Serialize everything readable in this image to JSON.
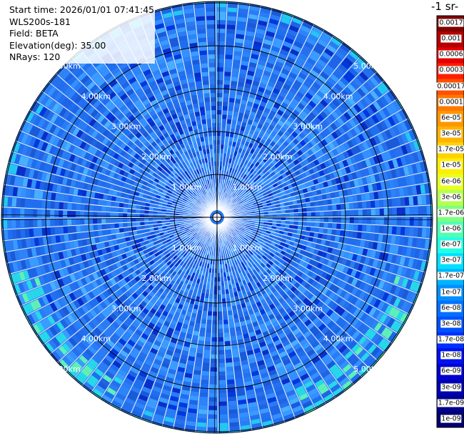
{
  "info": {
    "start_time": "Start time: 2026/01/01 07:41:45",
    "instrument": "WLS200s-181",
    "field": "Field: BETA",
    "elevation": "Elevation(deg): 35.00",
    "nrays": "NRays: 120"
  },
  "colorbar": {
    "title": "-1 sr-",
    "labels": [
      "0.0017",
      "0.001",
      "0.0006",
      "0.0003",
      "0.00017",
      "0.0001",
      "6e-05",
      "3e-05",
      "1.7e-05",
      "1e-05",
      "6e-06",
      "3e-06",
      "1.7e-06",
      "1e-06",
      "6e-07",
      "3e-07",
      "1.7e-07",
      "1e-07",
      "6e-08",
      "3e-08",
      "1.7e-08",
      "1e-08",
      "6e-09",
      "3e-09",
      "1.7e-09",
      "1e-09"
    ],
    "colors": [
      "#800000",
      "#b40000",
      "#e60000",
      "#ff1e00",
      "#ff5000",
      "#ff7800",
      "#ff9600",
      "#ffb400",
      "#ffd200",
      "#ffee00",
      "#e8ff20",
      "#b4ff50",
      "#80ff80",
      "#50ffb4",
      "#20ffe4",
      "#00e0ff",
      "#00b4ff",
      "#0090ff",
      "#0070ff",
      "#0050ff",
      "#0030ff",
      "#0010f0",
      "#0000d0",
      "#0000b0",
      "#000090",
      "#000070"
    ]
  },
  "ring_labels": {
    "r1": "1.00km",
    "r2": "2.00km",
    "r3": "3.00km",
    "r4": "4.00km",
    "r5": "5.00km"
  }
}
